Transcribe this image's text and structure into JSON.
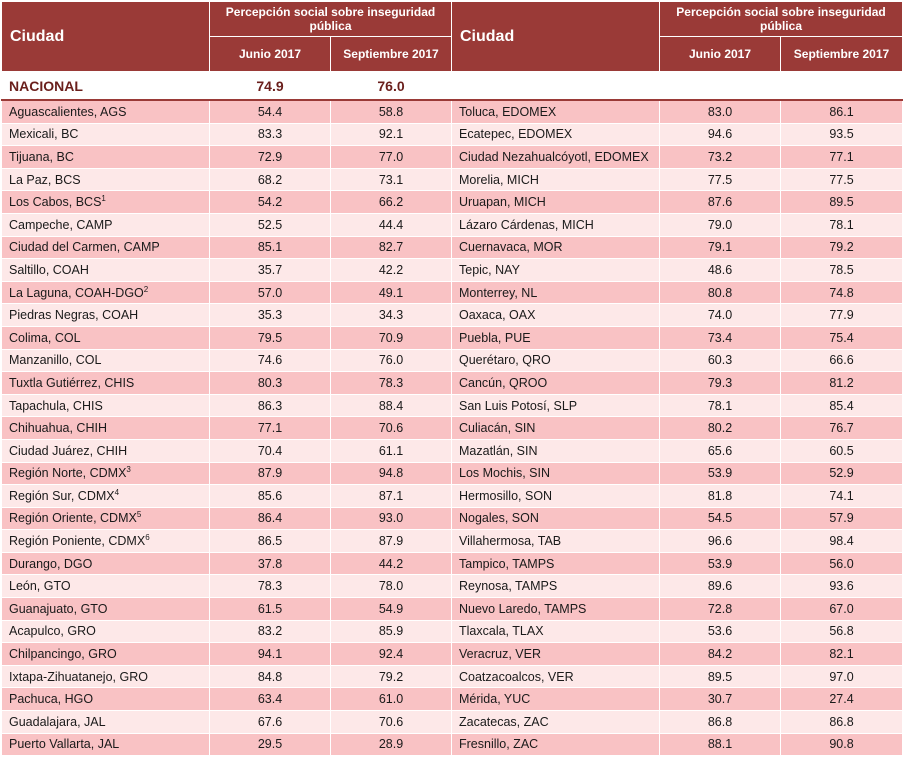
{
  "headers": {
    "city": "Ciudad",
    "group": "Percepción social sobre inseguridad pública",
    "period1": "Junio 2017",
    "period2": "Septiembre 2017"
  },
  "national": {
    "label": "NACIONAL",
    "jun": "74.9",
    "sep": "76.0"
  },
  "rows": [
    {
      "l": "Aguascalientes, AGS",
      "l1": "54.4",
      "l2": "58.8",
      "r": "Toluca, EDOMEX",
      "r1": "83.0",
      "r2": "86.1"
    },
    {
      "l": "Mexicali, BC",
      "l1": "83.3",
      "l2": "92.1",
      "r": "Ecatepec, EDOMEX",
      "r1": "94.6",
      "r2": "93.5"
    },
    {
      "l": "Tijuana, BC",
      "l1": "72.9",
      "l2": "77.0",
      "r": "Ciudad Nezahualcóyotl, EDOMEX",
      "r1": "73.2",
      "r2": "77.1"
    },
    {
      "l": "La Paz, BCS",
      "l1": "68.2",
      "l2": "73.1",
      "r": "Morelia, MICH",
      "r1": "77.5",
      "r2": "77.5"
    },
    {
      "l": "Los Cabos, BCS",
      "ls": "1",
      "l1": "54.2",
      "l2": "66.2",
      "r": "Uruapan, MICH",
      "r1": "87.6",
      "r2": "89.5"
    },
    {
      "l": "Campeche, CAMP",
      "l1": "52.5",
      "l2": "44.4",
      "r": "Lázaro Cárdenas, MICH",
      "r1": "79.0",
      "r2": "78.1"
    },
    {
      "l": "Ciudad del Carmen, CAMP",
      "l1": "85.1",
      "l2": "82.7",
      "r": "Cuernavaca, MOR",
      "r1": "79.1",
      "r2": "79.2"
    },
    {
      "l": "Saltillo, COAH",
      "l1": "35.7",
      "l2": "42.2",
      "r": "Tepic, NAY",
      "r1": "48.6",
      "r2": "78.5"
    },
    {
      "l": "La Laguna, COAH-DGO",
      "ls": "2",
      "l1": "57.0",
      "l2": "49.1",
      "r": "Monterrey, NL",
      "r1": "80.8",
      "r2": "74.8"
    },
    {
      "l": "Piedras Negras, COAH",
      "l1": "35.3",
      "l2": "34.3",
      "r": "Oaxaca, OAX",
      "r1": "74.0",
      "r2": "77.9"
    },
    {
      "l": "Colima, COL",
      "l1": "79.5",
      "l2": "70.9",
      "r": "Puebla, PUE",
      "r1": "73.4",
      "r2": "75.4"
    },
    {
      "l": "Manzanillo, COL",
      "l1": "74.6",
      "l2": "76.0",
      "r": "Querétaro, QRO",
      "r1": "60.3",
      "r2": "66.6"
    },
    {
      "l": "Tuxtla Gutiérrez, CHIS",
      "l1": "80.3",
      "l2": "78.3",
      "r": "Cancún, QROO",
      "r1": "79.3",
      "r2": "81.2"
    },
    {
      "l": "Tapachula, CHIS",
      "l1": "86.3",
      "l2": "88.4",
      "r": "San Luis Potosí, SLP",
      "r1": "78.1",
      "r2": "85.4"
    },
    {
      "l": "Chihuahua, CHIH",
      "l1": "77.1",
      "l2": "70.6",
      "r": "Culiacán, SIN",
      "r1": "80.2",
      "r2": "76.7"
    },
    {
      "l": "Ciudad Juárez, CHIH",
      "l1": "70.4",
      "l2": "61.1",
      "r": "Mazatlán, SIN",
      "r1": "65.6",
      "r2": "60.5"
    },
    {
      "l": "Región Norte, CDMX",
      "ls": "3",
      "l1": "87.9",
      "l2": "94.8",
      "r": "Los Mochis, SIN",
      "r1": "53.9",
      "r2": "52.9"
    },
    {
      "l": "Región Sur, CDMX",
      "ls": "4",
      "l1": "85.6",
      "l2": "87.1",
      "r": "Hermosillo, SON",
      "r1": "81.8",
      "r2": "74.1"
    },
    {
      "l": "Región Oriente, CDMX",
      "ls": "5",
      "l1": "86.4",
      "l2": "93.0",
      "r": "Nogales, SON",
      "r1": "54.5",
      "r2": "57.9"
    },
    {
      "l": "Región Poniente, CDMX",
      "ls": "6",
      "l1": "86.5",
      "l2": "87.9",
      "r": "Villahermosa, TAB",
      "r1": "96.6",
      "r2": "98.4"
    },
    {
      "l": "Durango, DGO",
      "l1": "37.8",
      "l2": "44.2",
      "r": "Tampico, TAMPS",
      "r1": "53.9",
      "r2": "56.0"
    },
    {
      "l": "León, GTO",
      "l1": "78.3",
      "l2": "78.0",
      "r": "Reynosa, TAMPS",
      "r1": "89.6",
      "r2": "93.6"
    },
    {
      "l": "Guanajuato, GTO",
      "l1": "61.5",
      "l2": "54.9",
      "r": "Nuevo Laredo, TAMPS",
      "r1": "72.8",
      "r2": "67.0"
    },
    {
      "l": "Acapulco, GRO",
      "l1": "83.2",
      "l2": "85.9",
      "r": "Tlaxcala, TLAX",
      "r1": "53.6",
      "r2": "56.8"
    },
    {
      "l": "Chilpancingo, GRO",
      "l1": "94.1",
      "l2": "92.4",
      "r": "Veracruz, VER",
      "r1": "84.2",
      "r2": "82.1"
    },
    {
      "l": "Ixtapa-Zihuatanejo, GRO",
      "l1": "84.8",
      "l2": "79.2",
      "r": "Coatzacoalcos, VER",
      "r1": "89.5",
      "r2": "97.0"
    },
    {
      "l": "Pachuca, HGO",
      "l1": "63.4",
      "l2": "61.0",
      "r": "Mérida, YUC",
      "r1": "30.7",
      "r2": "27.4"
    },
    {
      "l": "Guadalajara, JAL",
      "l1": "67.6",
      "l2": "70.6",
      "r": "Zacatecas, ZAC",
      "r1": "86.8",
      "r2": "86.8"
    },
    {
      "l": "Puerto Vallarta, JAL",
      "l1": "29.5",
      "l2": "28.9",
      "r": "Fresnillo, ZAC",
      "r1": "88.1",
      "r2": "90.8"
    }
  ]
}
